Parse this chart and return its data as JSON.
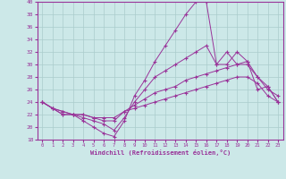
{
  "xlabel": "Windchill (Refroidissement éolien,°C)",
  "background_color": "#cce8e8",
  "line_color": "#993399",
  "grid_color": "#aacccc",
  "xlim": [
    -0.5,
    23.5
  ],
  "ylim": [
    18,
    40
  ],
  "yticks": [
    18,
    20,
    22,
    24,
    26,
    28,
    30,
    32,
    34,
    36,
    38,
    40
  ],
  "xticks": [
    0,
    1,
    2,
    3,
    4,
    5,
    6,
    7,
    8,
    9,
    10,
    11,
    12,
    13,
    14,
    15,
    16,
    17,
    18,
    19,
    20,
    21,
    22,
    23
  ],
  "lines": [
    [
      24,
      23,
      22,
      22,
      21,
      20,
      19,
      18.5,
      21,
      25,
      27.5,
      30.5,
      33,
      35.5,
      38,
      40,
      40,
      30,
      30,
      32,
      30.5,
      28,
      26,
      25
    ],
    [
      24,
      23,
      22,
      22,
      21.5,
      21,
      20.5,
      19.5,
      21.5,
      24,
      26,
      28,
      29,
      30,
      31,
      32,
      33,
      30,
      32,
      30,
      30.5,
      26,
      26.5,
      24
    ],
    [
      24,
      23,
      22.5,
      22,
      22,
      21.5,
      21,
      21,
      22.5,
      23.5,
      24.5,
      25.5,
      26,
      26.5,
      27.5,
      28,
      28.5,
      29,
      29.5,
      30,
      30,
      28,
      26.5,
      24
    ],
    [
      24,
      23,
      22.5,
      22,
      22,
      21.5,
      21.5,
      21.5,
      22.5,
      23,
      23.5,
      24,
      24.5,
      25,
      25.5,
      26,
      26.5,
      27,
      27.5,
      28,
      28,
      27,
      25,
      24
    ]
  ]
}
